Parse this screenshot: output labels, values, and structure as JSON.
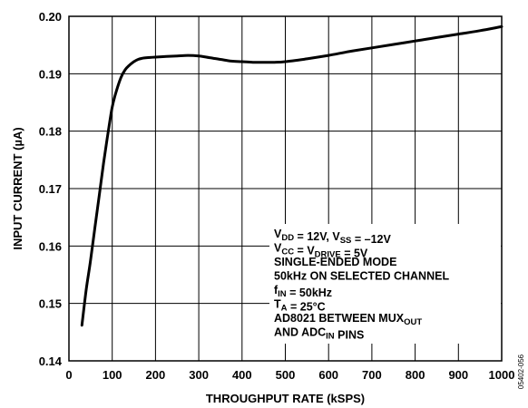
{
  "chart_data": {
    "type": "line",
    "title": "",
    "xlabel": "THROUGHPUT RATE (kSPS)",
    "ylabel": "INPUT CURRENT (µA)",
    "xlim": [
      0,
      1000
    ],
    "ylim": [
      0.14,
      0.2
    ],
    "grid": true,
    "x_ticks": [
      "0",
      "100",
      "200",
      "300",
      "400",
      "500",
      "600",
      "700",
      "800",
      "900",
      "1000"
    ],
    "y_ticks": [
      "0.14",
      "0.15",
      "0.16",
      "0.17",
      "0.18",
      "0.19",
      "0.20"
    ],
    "series": [
      {
        "x": [
          30,
          40,
          50,
          60,
          70,
          80,
          90,
          100,
          110,
          120,
          130,
          140,
          150,
          160,
          170,
          180,
          200,
          225,
          250,
          275,
          300,
          325,
          350,
          375,
          400,
          425,
          450,
          475,
          500,
          550,
          600,
          650,
          700,
          750,
          800,
          850,
          900,
          950,
          1000
        ],
        "values": [
          0.1462,
          0.1525,
          0.1575,
          0.1632,
          0.1688,
          0.1745,
          0.1795,
          0.1842,
          0.1871,
          0.1893,
          0.1907,
          0.1915,
          0.1921,
          0.1925,
          0.1927,
          0.1928,
          0.1929,
          0.193,
          0.1931,
          0.1932,
          0.1931,
          0.1928,
          0.1925,
          0.1922,
          0.1921,
          0.192,
          0.192,
          0.192,
          0.1921,
          0.1926,
          0.1932,
          0.1939,
          0.1945,
          0.1951,
          0.1957,
          0.1963,
          0.1969,
          0.1975,
          0.1982
        ]
      }
    ],
    "annotation": [
      [
        {
          "t": "V"
        },
        {
          "t": "DD",
          "sub": true
        },
        {
          "t": " = 12V, V"
        },
        {
          "t": "SS",
          "sub": true
        },
        {
          "t": " = –12V"
        }
      ],
      [
        {
          "t": "V"
        },
        {
          "t": "CC",
          "sub": true
        },
        {
          "t": " = V"
        },
        {
          "t": "DRIVE",
          "sub": true
        },
        {
          "t": " = 5V"
        }
      ],
      [
        {
          "t": "SINGLE-ENDED MODE"
        }
      ],
      [
        {
          "t": "50kHz ON SELECTED CHANNEL"
        }
      ],
      [
        {
          "t": "f"
        },
        {
          "t": "IN",
          "sub": true
        },
        {
          "t": " = 50kHz"
        }
      ],
      [
        {
          "t": "T"
        },
        {
          "t": "A",
          "sub": true
        },
        {
          "t": " = 25°C"
        }
      ],
      [
        {
          "t": "AD8021 BETWEEN MUX"
        },
        {
          "t": "OUT",
          "sub": true
        }
      ],
      [
        {
          "t": "  AND ADC"
        },
        {
          "t": "IN",
          "sub": true
        },
        {
          "t": " PINS"
        }
      ]
    ]
  },
  "figure_id": "05402-056"
}
